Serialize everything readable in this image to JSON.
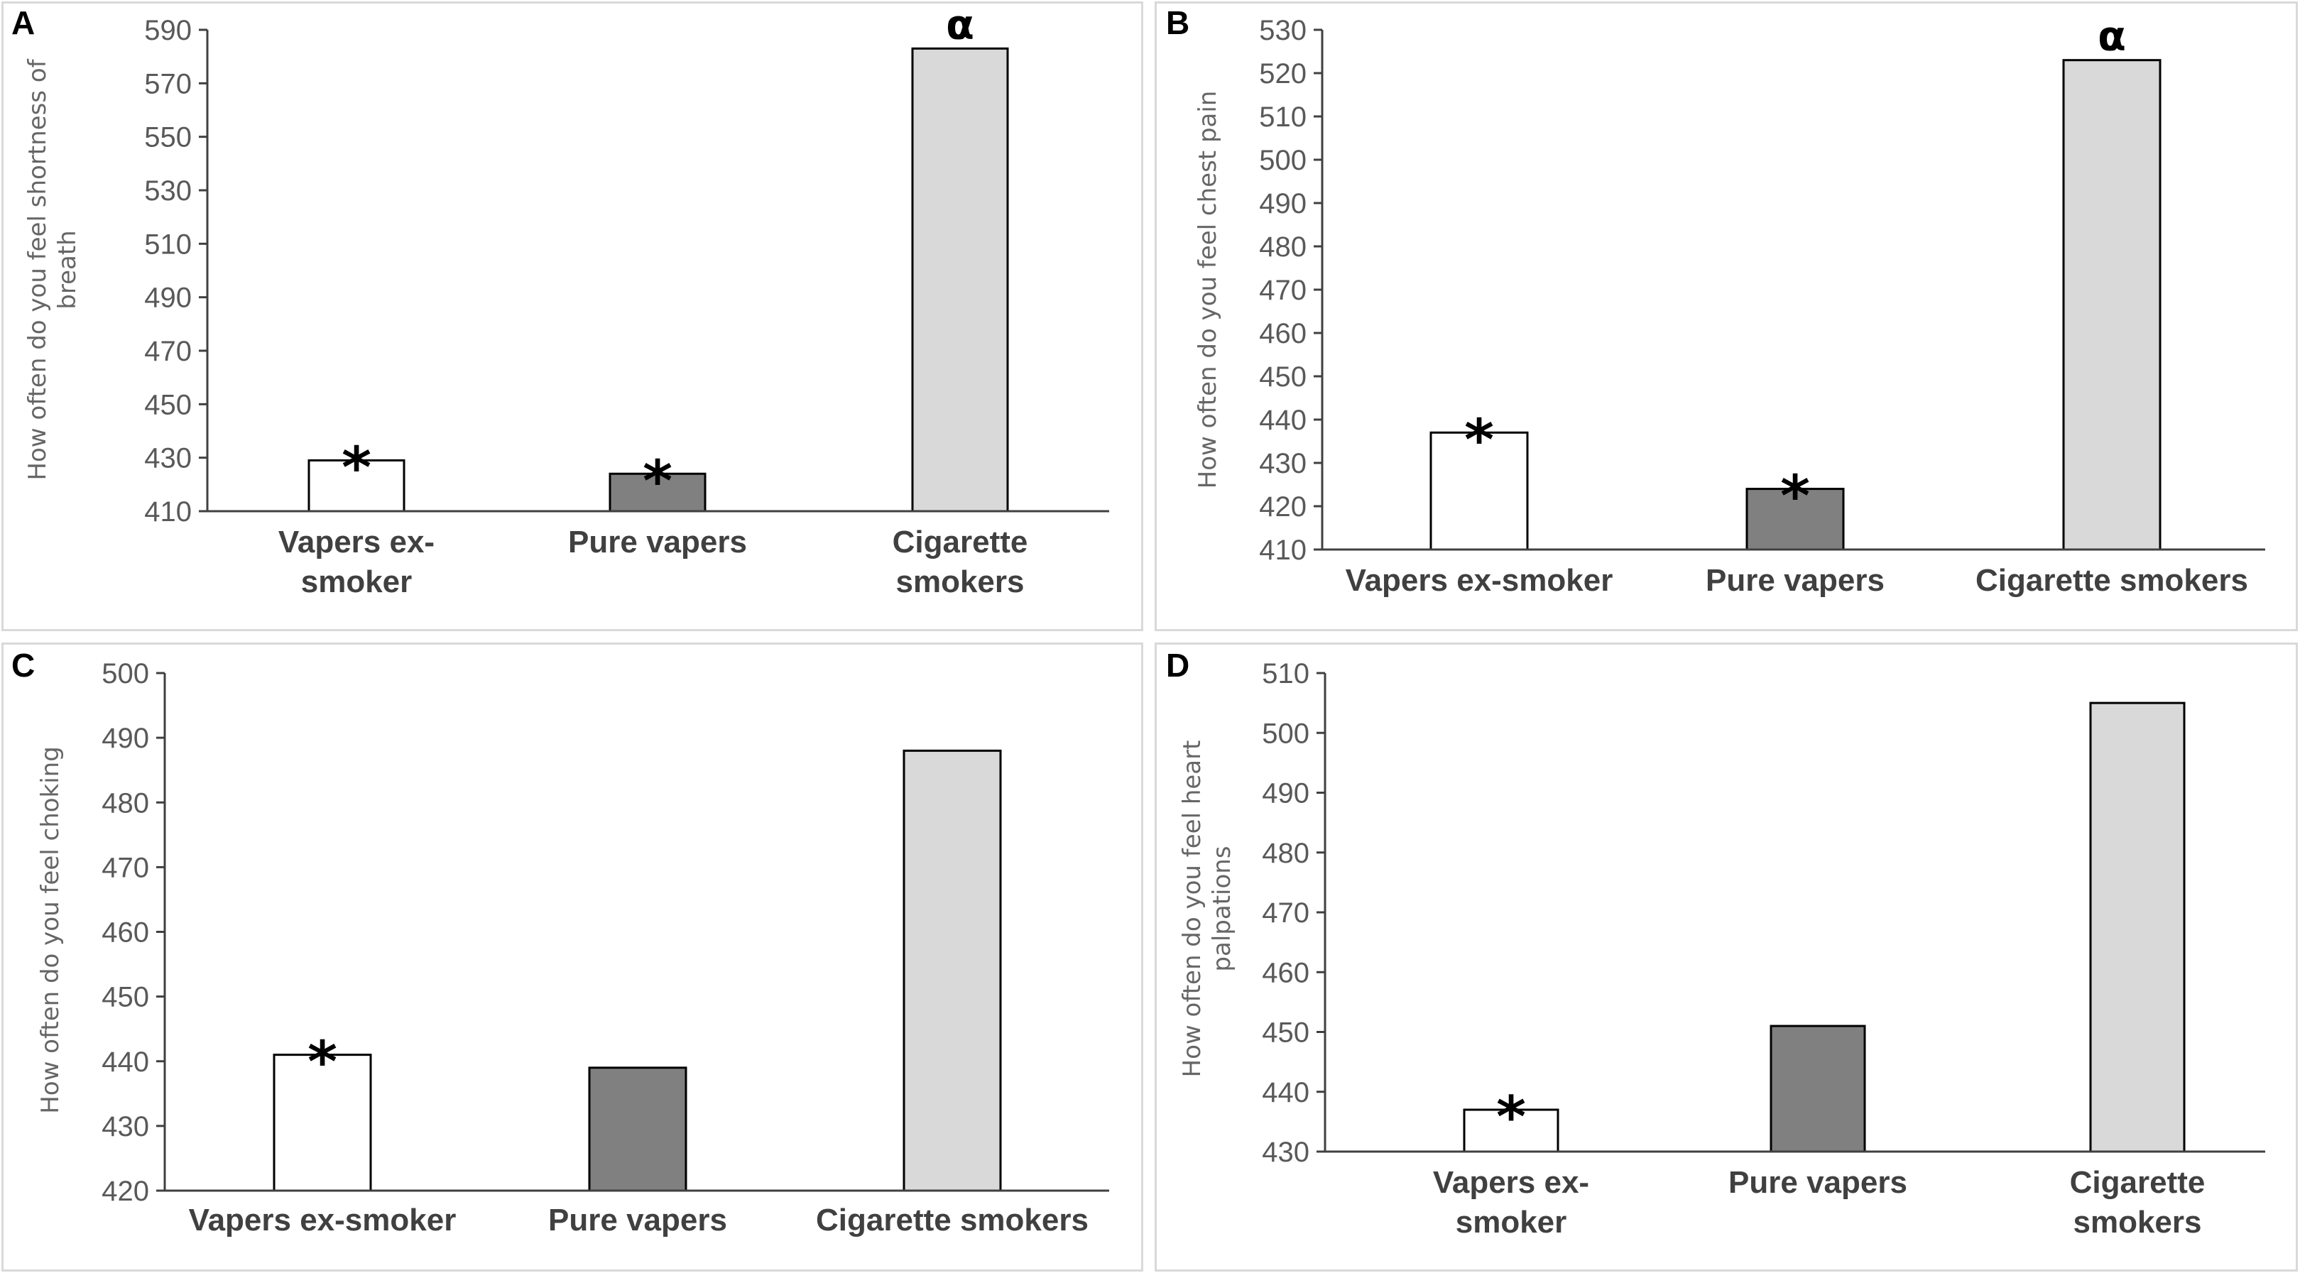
{
  "chart_data": [
    {
      "panel": "A",
      "type": "bar",
      "categories": [
        "Vapers ex-smoker",
        "Pure vapers",
        "Cigarette smokers"
      ],
      "category_lines": [
        [
          "Vapers ex-",
          "smoker"
        ],
        [
          "Pure vapers"
        ],
        [
          "Cigarette",
          "smokers"
        ]
      ],
      "values": [
        429,
        424,
        583
      ],
      "colors": [
        "#ffffff",
        "#808080",
        "#d9d9d9"
      ],
      "annotations": [
        "*",
        "*",
        "α"
      ],
      "ylabel_lines": [
        "How often do you feel shortness of",
        "breath"
      ],
      "ylim": [
        410,
        590
      ],
      "yticks": [
        410,
        430,
        450,
        470,
        490,
        510,
        530,
        550,
        570,
        590
      ],
      "grid": false
    },
    {
      "panel": "B",
      "type": "bar",
      "categories": [
        "Vapers ex-smoker",
        "Pure vapers",
        "Cigarette smokers"
      ],
      "category_lines": [
        [
          "Vapers ex-smoker"
        ],
        [
          "Pure vapers"
        ],
        [
          "Cigarette smokers"
        ]
      ],
      "values": [
        437,
        424,
        523
      ],
      "colors": [
        "#ffffff",
        "#808080",
        "#d9d9d9"
      ],
      "annotations": [
        "*",
        "*",
        "α"
      ],
      "ylabel_lines": [
        "How often do you feel chest pain"
      ],
      "ylim": [
        410,
        530
      ],
      "yticks": [
        410,
        420,
        430,
        440,
        450,
        460,
        470,
        480,
        490,
        500,
        510,
        520,
        530
      ],
      "grid": false
    },
    {
      "panel": "C",
      "type": "bar",
      "categories": [
        "Vapers ex-smoker",
        "Pure vapers",
        "Cigarette smokers"
      ],
      "category_lines": [
        [
          "Vapers ex-smoker"
        ],
        [
          "Pure vapers"
        ],
        [
          "Cigarette smokers"
        ]
      ],
      "values": [
        441,
        439,
        488
      ],
      "colors": [
        "#ffffff",
        "#808080",
        "#d9d9d9"
      ],
      "annotations": [
        "*",
        "",
        ""
      ],
      "ylabel_lines": [
        "How often do you feel choking"
      ],
      "ylim": [
        420,
        500
      ],
      "yticks": [
        420,
        430,
        440,
        450,
        460,
        470,
        480,
        490,
        500
      ],
      "grid": false
    },
    {
      "panel": "D",
      "type": "bar",
      "categories": [
        "Vapers ex-smoker",
        "Pure vapers",
        "Cigarette smokers"
      ],
      "category_lines": [
        [
          "Vapers ex-",
          "smoker"
        ],
        [
          "Pure vapers"
        ],
        [
          "Cigarette",
          "smokers"
        ]
      ],
      "values": [
        437,
        451,
        505
      ],
      "colors": [
        "#ffffff",
        "#808080",
        "#d9d9d9"
      ],
      "annotations": [
        "*",
        "",
        ""
      ],
      "ylabel_lines": [
        "How often do you feel heart",
        "palpations"
      ],
      "ylim": [
        430,
        510
      ],
      "yticks": [
        430,
        440,
        450,
        460,
        470,
        480,
        490,
        500,
        510
      ],
      "grid": false
    }
  ]
}
